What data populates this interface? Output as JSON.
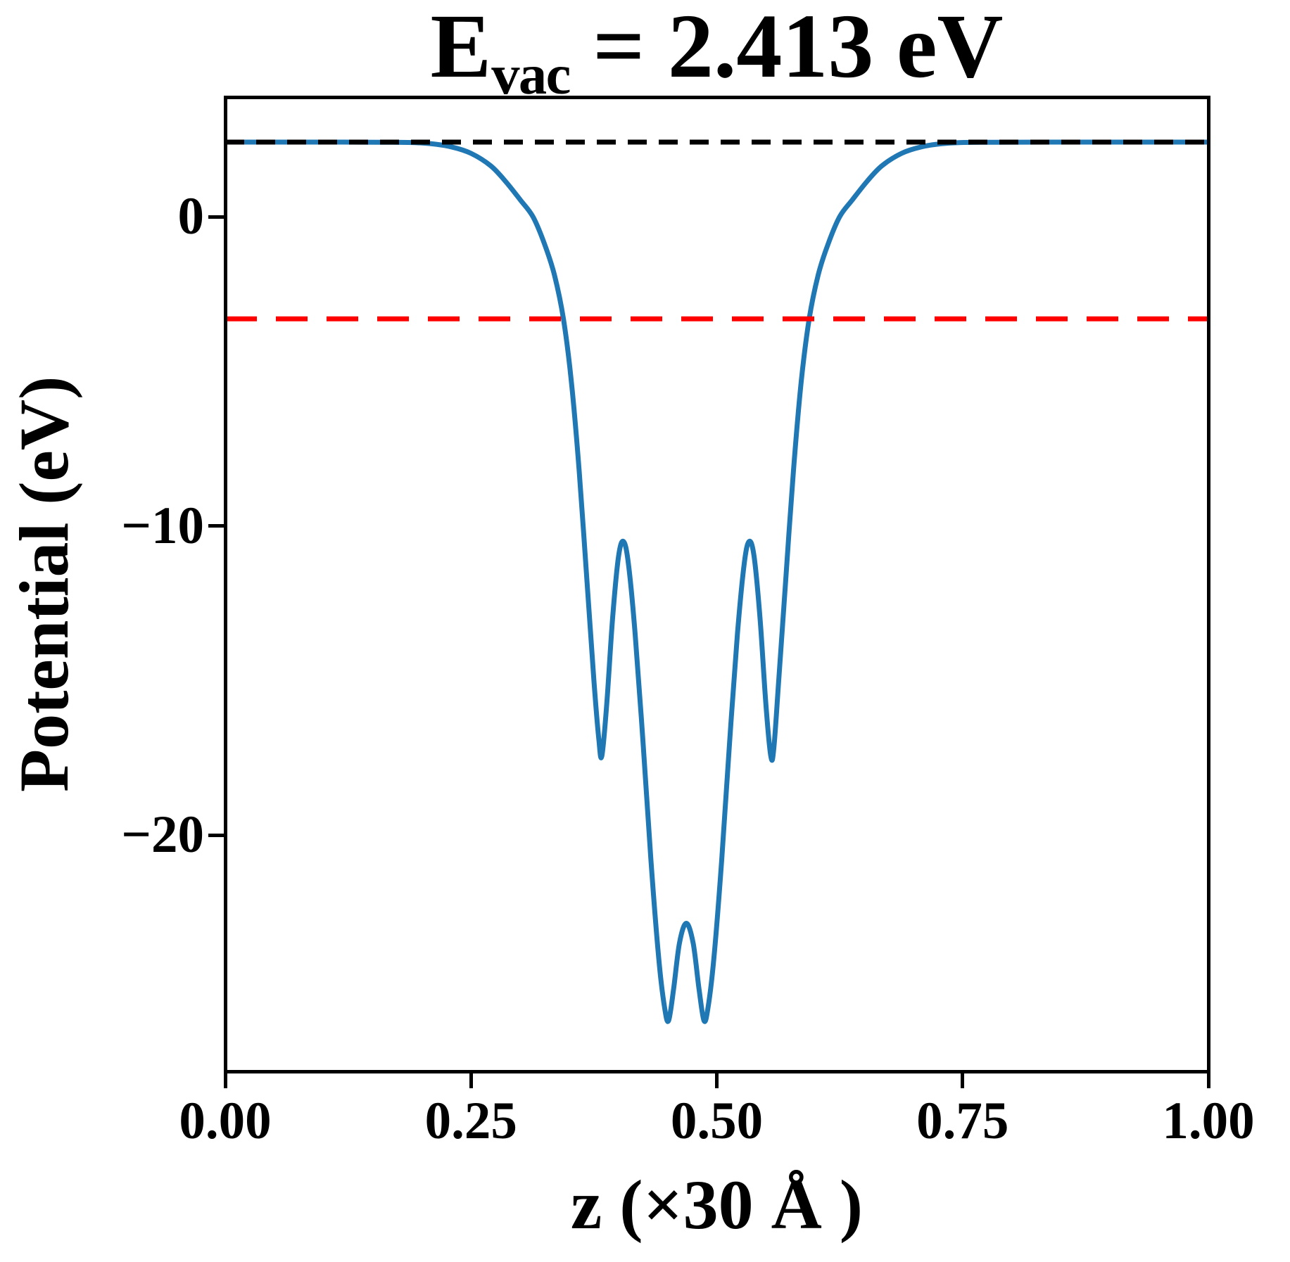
{
  "title_parts": {
    "symbol": "E",
    "subscript": "vac",
    "equals": " = 2.413 eV"
  },
  "chart_data": {
    "type": "line",
    "title": "E_vac = 2.413 eV",
    "xlabel": "z (×30 Å )",
    "ylabel": "Potential (eV)",
    "xlim": [
      0.0,
      1.0
    ],
    "ylim": [
      -27.64,
      3.87
    ],
    "grid": false,
    "legend": "none",
    "vacuum_level_eV": 2.413,
    "x_ticks": [
      {
        "v": 0.0,
        "label": "0.00"
      },
      {
        "v": 0.25,
        "label": "0.25"
      },
      {
        "v": 0.5,
        "label": "0.50"
      },
      {
        "v": 0.75,
        "label": "0.75"
      },
      {
        "v": 1.0,
        "label": "1.00"
      }
    ],
    "y_ticks": [
      {
        "v": 0,
        "label": "0"
      },
      {
        "v": -10,
        "label": "−10"
      },
      {
        "v": -20,
        "label": "−20"
      }
    ],
    "series": [
      {
        "name": "planar-averaged-electrostatic-potential",
        "kind": "curve",
        "color": "#1f77b4",
        "linestyle": "solid",
        "linewidth": 7,
        "points": [
          [
            0.0,
            2.413
          ],
          [
            0.06,
            2.413
          ],
          [
            0.12,
            2.413
          ],
          [
            0.16,
            2.41
          ],
          [
            0.19,
            2.4
          ],
          [
            0.21,
            2.36
          ],
          [
            0.23,
            2.26
          ],
          [
            0.25,
            2.05
          ],
          [
            0.27,
            1.65
          ],
          [
            0.285,
            1.15
          ],
          [
            0.3,
            0.55
          ],
          [
            0.313,
            0.0
          ],
          [
            0.325,
            -0.9
          ],
          [
            0.335,
            -1.9
          ],
          [
            0.344,
            -3.3
          ],
          [
            0.352,
            -5.3
          ],
          [
            0.36,
            -8.2
          ],
          [
            0.368,
            -11.8
          ],
          [
            0.375,
            -15.0
          ],
          [
            0.38,
            -16.9
          ],
          [
            0.383,
            -17.45
          ],
          [
            0.388,
            -15.8
          ],
          [
            0.394,
            -13.0
          ],
          [
            0.4,
            -11.0
          ],
          [
            0.405,
            -10.5
          ],
          [
            0.41,
            -11.2
          ],
          [
            0.417,
            -13.5
          ],
          [
            0.425,
            -17.0
          ],
          [
            0.433,
            -20.8
          ],
          [
            0.441,
            -24.0
          ],
          [
            0.447,
            -25.6
          ],
          [
            0.451,
            -26.0
          ],
          [
            0.456,
            -25.0
          ],
          [
            0.462,
            -23.5
          ],
          [
            0.469,
            -22.85
          ],
          [
            0.476,
            -23.5
          ],
          [
            0.482,
            -25.0
          ],
          [
            0.487,
            -26.0
          ],
          [
            0.491,
            -25.6
          ],
          [
            0.497,
            -24.0
          ],
          [
            0.505,
            -20.8
          ],
          [
            0.513,
            -17.0
          ],
          [
            0.521,
            -13.5
          ],
          [
            0.528,
            -11.2
          ],
          [
            0.533,
            -10.5
          ],
          [
            0.538,
            -11.0
          ],
          [
            0.544,
            -13.0
          ],
          [
            0.55,
            -15.8
          ],
          [
            0.555,
            -17.45
          ],
          [
            0.558,
            -17.2
          ],
          [
            0.563,
            -15.0
          ],
          [
            0.57,
            -11.8
          ],
          [
            0.578,
            -8.2
          ],
          [
            0.586,
            -5.3
          ],
          [
            0.594,
            -3.3
          ],
          [
            0.603,
            -1.9
          ],
          [
            0.613,
            -0.9
          ],
          [
            0.625,
            0.0
          ],
          [
            0.638,
            0.55
          ],
          [
            0.653,
            1.15
          ],
          [
            0.668,
            1.65
          ],
          [
            0.688,
            2.05
          ],
          [
            0.708,
            2.26
          ],
          [
            0.728,
            2.36
          ],
          [
            0.748,
            2.4
          ],
          [
            0.78,
            2.41
          ],
          [
            0.84,
            2.413
          ],
          [
            0.92,
            2.413
          ],
          [
            1.0,
            2.413
          ]
        ]
      },
      {
        "name": "vacuum-level-line",
        "kind": "hline",
        "color": "#000000",
        "linestyle": "dashed",
        "linewidth": 7,
        "y": 2.413,
        "dash": [
          27,
          17
        ]
      },
      {
        "name": "fermi-level-line",
        "kind": "hline",
        "color": "#ff0000",
        "linestyle": "dashed",
        "linewidth": 7,
        "y": -3.3,
        "dash": [
          45,
          27
        ]
      }
    ]
  },
  "colors": {
    "curve": "#1f77b4",
    "vacuum_dash": "#000000",
    "fermi_dash": "#ff0000",
    "axes": "#000000",
    "background": "#ffffff"
  }
}
